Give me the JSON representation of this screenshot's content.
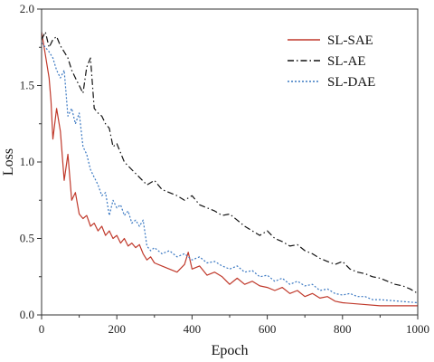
{
  "chart_data": {
    "type": "line",
    "title": "",
    "xlabel": "Epoch",
    "ylabel": "Loss",
    "xlim": [
      0,
      1000
    ],
    "ylim": [
      0.0,
      2.0
    ],
    "xticks": [
      0,
      200,
      400,
      600,
      800,
      1000
    ],
    "yticks": [
      0.0,
      0.5,
      1.0,
      1.5,
      2.0
    ],
    "ytick_labels": [
      "0.0",
      "0.5",
      "1.0",
      "1.5",
      "2.0"
    ],
    "grid": false,
    "legend_position": "top-right",
    "series": [
      {
        "name": "SL-SAE",
        "color": "#c0392b",
        "dash": "solid",
        "x": [
          0,
          10,
          20,
          25,
          30,
          40,
          50,
          60,
          70,
          80,
          90,
          100,
          110,
          120,
          130,
          140,
          150,
          160,
          170,
          180,
          190,
          200,
          210,
          220,
          230,
          240,
          250,
          260,
          270,
          280,
          290,
          300,
          320,
          340,
          360,
          380,
          390,
          400,
          420,
          440,
          460,
          480,
          500,
          520,
          540,
          560,
          580,
          600,
          620,
          640,
          660,
          680,
          700,
          720,
          740,
          760,
          780,
          800,
          850,
          900,
          950,
          1000
        ],
        "y": [
          1.85,
          1.7,
          1.55,
          1.4,
          1.15,
          1.35,
          1.2,
          0.88,
          1.05,
          0.75,
          0.8,
          0.66,
          0.63,
          0.65,
          0.58,
          0.6,
          0.55,
          0.58,
          0.52,
          0.55,
          0.5,
          0.52,
          0.47,
          0.5,
          0.45,
          0.47,
          0.44,
          0.46,
          0.4,
          0.36,
          0.38,
          0.34,
          0.32,
          0.3,
          0.28,
          0.33,
          0.41,
          0.3,
          0.32,
          0.26,
          0.28,
          0.25,
          0.2,
          0.24,
          0.2,
          0.22,
          0.19,
          0.18,
          0.16,
          0.18,
          0.14,
          0.16,
          0.12,
          0.14,
          0.11,
          0.12,
          0.09,
          0.08,
          0.07,
          0.06,
          0.06,
          0.06
        ]
      },
      {
        "name": "SL-AE",
        "color": "#111111",
        "dash": "dashdot",
        "x": [
          0,
          10,
          20,
          30,
          40,
          50,
          60,
          70,
          80,
          90,
          100,
          110,
          120,
          130,
          140,
          150,
          160,
          170,
          180,
          190,
          200,
          220,
          240,
          260,
          280,
          300,
          320,
          340,
          360,
          380,
          400,
          420,
          440,
          460,
          480,
          500,
          520,
          540,
          560,
          580,
          600,
          620,
          640,
          660,
          680,
          700,
          720,
          740,
          760,
          780,
          800,
          820,
          840,
          860,
          880,
          900,
          920,
          940,
          960,
          980,
          1000
        ],
        "y": [
          1.8,
          1.85,
          1.75,
          1.8,
          1.82,
          1.76,
          1.72,
          1.68,
          1.6,
          1.55,
          1.5,
          1.45,
          1.62,
          1.68,
          1.35,
          1.32,
          1.3,
          1.25,
          1.22,
          1.1,
          1.12,
          1.0,
          0.95,
          0.9,
          0.85,
          0.88,
          0.82,
          0.8,
          0.78,
          0.75,
          0.78,
          0.72,
          0.7,
          0.68,
          0.65,
          0.66,
          0.62,
          0.58,
          0.55,
          0.52,
          0.55,
          0.5,
          0.48,
          0.45,
          0.46,
          0.42,
          0.4,
          0.37,
          0.35,
          0.33,
          0.35,
          0.3,
          0.28,
          0.27,
          0.25,
          0.24,
          0.22,
          0.2,
          0.19,
          0.17,
          0.14
        ]
      },
      {
        "name": "SL-DAE",
        "color": "#3a78c2",
        "dash": "dotted",
        "x": [
          0,
          10,
          20,
          30,
          40,
          50,
          60,
          70,
          80,
          90,
          100,
          110,
          120,
          130,
          140,
          150,
          160,
          170,
          180,
          190,
          200,
          210,
          220,
          230,
          240,
          250,
          260,
          270,
          280,
          290,
          300,
          320,
          340,
          360,
          380,
          400,
          420,
          440,
          460,
          480,
          500,
          520,
          540,
          560,
          580,
          600,
          620,
          640,
          660,
          680,
          700,
          720,
          740,
          760,
          780,
          800,
          820,
          840,
          860,
          880,
          900,
          950,
          1000
        ],
        "y": [
          1.78,
          1.75,
          1.72,
          1.68,
          1.6,
          1.55,
          1.6,
          1.3,
          1.35,
          1.25,
          1.32,
          1.1,
          1.05,
          0.95,
          0.9,
          0.85,
          0.78,
          0.8,
          0.65,
          0.75,
          0.7,
          0.72,
          0.65,
          0.68,
          0.6,
          0.62,
          0.58,
          0.62,
          0.45,
          0.42,
          0.44,
          0.4,
          0.42,
          0.38,
          0.4,
          0.36,
          0.38,
          0.34,
          0.35,
          0.32,
          0.3,
          0.32,
          0.28,
          0.29,
          0.25,
          0.26,
          0.22,
          0.24,
          0.2,
          0.22,
          0.19,
          0.2,
          0.16,
          0.17,
          0.14,
          0.13,
          0.14,
          0.12,
          0.12,
          0.1,
          0.1,
          0.09,
          0.08
        ]
      }
    ]
  }
}
